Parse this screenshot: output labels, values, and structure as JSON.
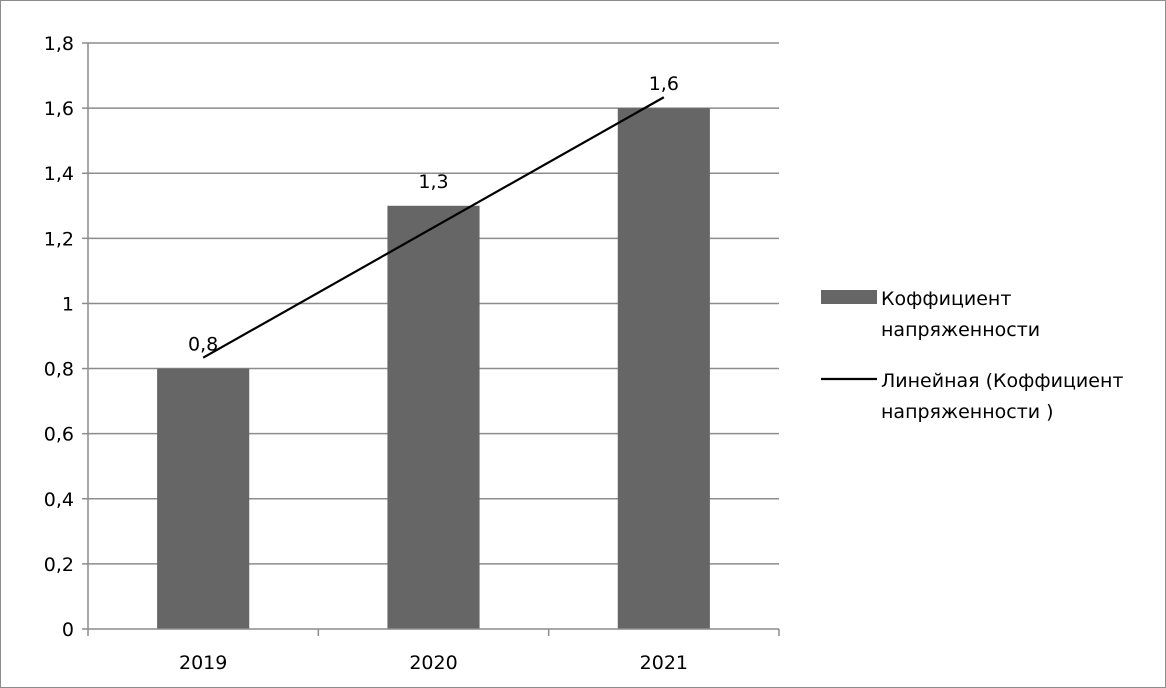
{
  "chart_data": {
    "type": "bar",
    "categories": [
      "2019",
      "2020",
      "2021"
    ],
    "series": [
      {
        "name": "Коффициент напряженности",
        "legend_lines": [
          "Коффициент",
          "напряженности"
        ],
        "values": [
          0.8,
          1.3,
          1.6
        ],
        "value_labels": [
          "0,8",
          "1,3",
          "1,6"
        ],
        "color": "#666666"
      }
    ],
    "trendline": {
      "type": "linear",
      "name": "Линейная (Коффициент напряженности )",
      "legend_lines": [
        "Линейная (Коффициент",
        "напряженности )"
      ],
      "color": "#000000"
    },
    "ylim": [
      0,
      1.8
    ],
    "y_ticks": [
      0,
      0.2,
      0.4,
      0.6,
      0.8,
      1,
      1.2,
      1.4,
      1.6,
      1.8
    ],
    "y_tick_labels": [
      "0",
      "0,2",
      "0,4",
      "0,6",
      "0,8",
      "1",
      "1,2",
      "1,4",
      "1,6",
      "1,8"
    ],
    "grid": true,
    "legend_position": "right",
    "title": "",
    "xlabel": "",
    "ylabel": ""
  }
}
